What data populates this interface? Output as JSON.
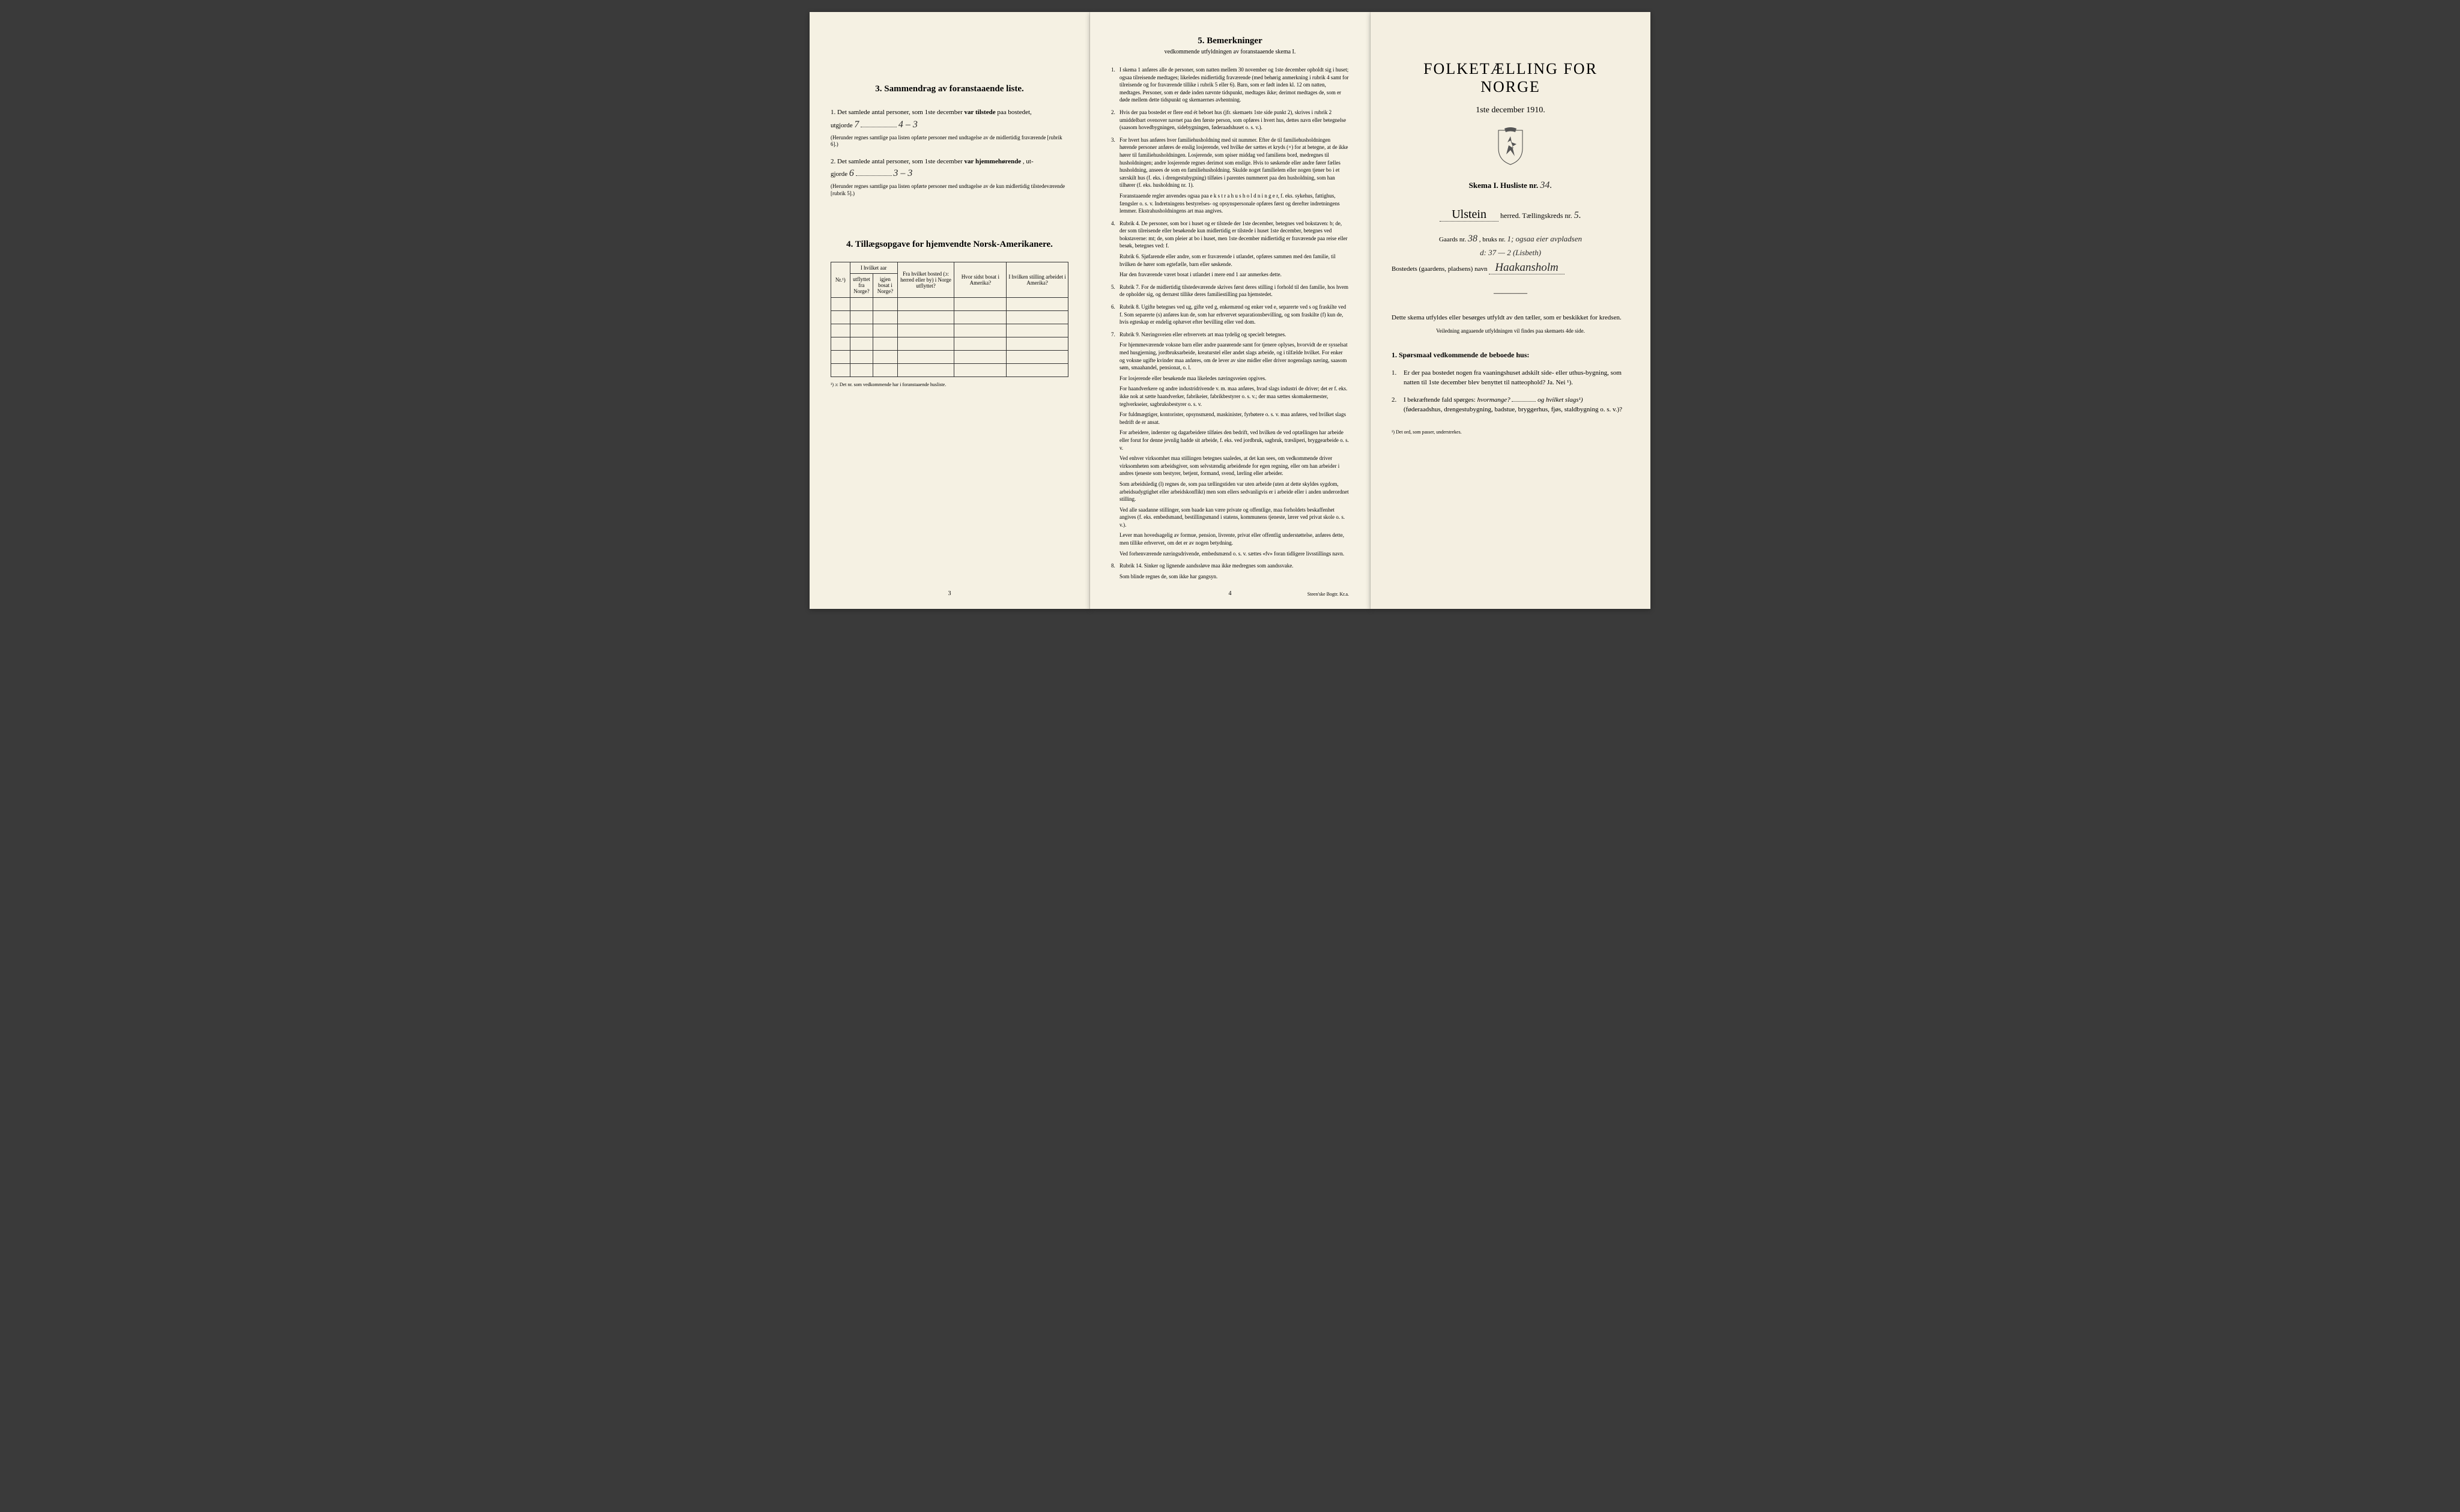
{
  "page1": {
    "section3_title": "3.   Sammendrag av foranstaaende liste.",
    "item1_prefix": "1.  Det samlede antal personer, som 1ste december",
    "item1_bold": "var tilstede",
    "item1_suffix": "paa bostedet,",
    "item1_utgjorde": "utgjorde",
    "item1_hw1": "7",
    "item1_hw2": "4 – 3",
    "item1_note": "(Herunder regnes samtlige paa listen opførte personer med undtagelse av de midlertidig fraværende [rubrik 6].)",
    "item2_prefix": "2.  Det samlede antal personer, som 1ste december",
    "item2_bold": "var hjemmehørende",
    "item2_suffix": ", ut-",
    "item2_gjorde": "gjorde",
    "item2_hw1": "6",
    "item2_hw2": "3 – 3",
    "item2_note": "(Herunder regnes samtlige paa listen opførte personer med undtagelse av de kun midlertidig tilstedeværende [rubrik 5].)",
    "section4_title": "4.   Tillægsopgave for hjemvendte Norsk-Amerikanere.",
    "table": {
      "col1": "Nr.¹)",
      "col2_top": "I hvilket aar",
      "col2a": "utflyttet fra Norge?",
      "col2b": "igjen bosat i Norge?",
      "col3": "Fra hvilket bosted (ɔ: herred eller by) i Norge utflyttet?",
      "col4": "Hvor sidst bosat i Amerika?",
      "col5": "I hvilken stilling arbeidet i Amerika?",
      "rows": 6
    },
    "footnote": "¹) ɔ: Det nr. som vedkommende har i foranstaaende husliste.",
    "page_num": "3"
  },
  "page2": {
    "title": "5.   Bemerkninger",
    "subtitle": "vedkommende utfyldningen av foranstaaende skema I.",
    "items": [
      {
        "num": "1.",
        "paras": [
          "I skema 1 anføres alle de personer, som natten mellem 30 november og 1ste december opholdt sig i huset; ogsaa tilreisende medtages; likeledes midlertidig fraværende (med behørig anmerkning i rubrik 4 samt for tilreisende og for fraværende tillike i rubrik 5 eller 6). Barn, som er født inden kl. 12 om natten, medtages. Personer, som er døde inden nævnte tidspunkt, medtages ikke; derimot medtages de, som er døde mellem dette tidspunkt og skemaernes avhentning."
        ]
      },
      {
        "num": "2.",
        "paras": [
          "Hvis der paa bostedet er flere end ét beboet hus (jfr. skemaets 1ste side punkt 2), skrives i rubrik 2 umiddelbart ovenover navnet paa den første person, som opføres i hvert hus, dettes navn eller betegnelse (saasom hovedbygningen, sidebygningen, føderaadshuset o. s. v.)."
        ]
      },
      {
        "num": "3.",
        "paras": [
          "For hvert hus anføres hver familiehusholdning med sit nummer. Efter de til familiehusholdningen hørende personer anføres de enslig losjerende, ved hvilke der sættes et kryds (×) for at betegne, at de ikke hører til familiehusholdningen. Losjerende, som spiser middag ved familiens bord, medregnes til husholdningen; andre losjerende regnes derimot som enslige. Hvis to søskende eller andre fører fælles husholdning, ansees de som en familiehusholdning. Skulde noget familielem eller nogen tjener bo i et særskilt hus (f. eks. i drengestubygning) tilføies i parentes nummeret paa den husholdning, som han tilhører (f. eks. husholdning nr. 1).",
          "Foranstaaende regler anvendes ogsaa paa e k s t r a h u s h o l d n i n g e r, f. eks. sykehus, fattighus, fængsler o. s. v. Indretningens bestyrelses- og opsynspersonale opføres først og derefter indretningens lemmer. Ekstrahusholdningens art maa angives."
        ]
      },
      {
        "num": "4.",
        "paras": [
          "Rubrik 4. De personer, som bor i huset og er tilstede der 1ste december, betegnes ved bokstaven: b; de, der som tilreisende eller besøkende kun midlertidig er tilstede i huset 1ste december, betegnes ved bokstaverne: mt; de, som pleier at bo i huset, men 1ste december midlertidig er fraværende paa reise eller besøk, betegnes ved: f.",
          "Rubrik 6. Sjøfarende eller andre, som er fraværende i utlandet, opføres sammen med den familie, til hvilken de hører som egtefælle, barn eller søskende.",
          "Har den fraværende været bosat i utlandet i mere end 1 aar anmerkes dette."
        ]
      },
      {
        "num": "5.",
        "paras": [
          "Rubrik 7. For de midlertidig tilstedeværende skrives først deres stilling i forhold til den familie, hos hvem de opholder sig, og dernæst tillike deres familiestilling paa hjemstedet."
        ]
      },
      {
        "num": "6.",
        "paras": [
          "Rubrik 8. Ugifte betegnes ved ug, gifte ved g, enkemænd og enker ved e, separerte ved s og fraskilte ved f. Som separerte (s) anføres kun de, som har erhvervet separationsbevilling, og som fraskilte (f) kun de, hvis egteskap er endelig ophævet efter bevilling eller ved dom."
        ]
      },
      {
        "num": "7.",
        "paras": [
          "Rubrik 9. Næringsveien eller erhvervets art maa tydelig og specielt betegnes.",
          "For hjemmeværende voksne barn eller andre paarørende samt for tjenere oplyses, hvorvidt de er sysselsat med husgjerning, jordbruksarbeide, kreaturstel eller andet slags arbeide, og i tilfælde hvilket. For enker og voksne ugifte kvinder maa anføres, om de lever av sine midler eller driver nogenslags næring, saasom søm, smaahandel, pensionat, o. l.",
          "For losjerende eller besøkende maa likeledes næringsveien opgives.",
          "For haandverkere og andre industridrivende v. m. maa anføres, hvad slags industri de driver; det er f. eks. ikke nok at sætte haandverker, fabrikeier, fabrikbestyrer o. s. v.; der maa sættes skomakermester, teglverkseier, sagbruksbestyrer o. s. v.",
          "For fuldmægtiger, kontorister, opsynsmænd, maskinister, fyrbøtere o. s. v. maa anføres, ved hvilket slags bedrift de er ansat.",
          "For arbeidere, inderster og dagarbeidere tilføies den bedrift, ved hvilken de ved optællingen har arbeide eller forut for denne jevnlig hadde sit arbeide, f. eks. ved jordbruk, sagbruk, træsliperi, bryggearbeide o. s. v.",
          "Ved enhver virksomhet maa stillingen betegnes saaledes, at det kan sees, om vedkommende driver virksomheten som arbeidsgiver, som selvstændig arbeidende for egen regning, eller om han arbeider i andres tjeneste som bestyrer, betjent, formand, svend, lærling eller arbeider.",
          "Som arbeidsledig (l) regnes de, som paa tællingstiden var uten arbeide (uten at dette skyldes sygdom, arbeidsudygtighet eller arbeidskonflikt) men som ellers sedvanligvis er i arbeide eller i anden underordnet stilling.",
          "Ved alle saadanne stillinger, som baade kan være private og offentlige, maa forholdets beskaffenhet angives (f. eks. embedsmand, bestillingsmand i statens, kommunens tjeneste, lærer ved privat skole o. s. v.).",
          "Lever man hovedsagelig av formue, pension, livrente, privat eller offentlig understøttelse, anføres dette, men tillike erhvervet, om det er av nogen betydning.",
          "Ved forhenværende næringsdrivende, embedsmænd o. s. v. sættes «fv» foran tidligere livsstillings navn."
        ]
      },
      {
        "num": "8.",
        "paras": [
          "Rubrik 14. Sinker og lignende aandssløve maa ikke medregnes som aandssvake.",
          "Som blinde regnes de, som ikke har gangsyn."
        ]
      }
    ],
    "page_num": "4",
    "printer": "Steen'ske Bogtr.  Kr.a."
  },
  "page3": {
    "main_title": "FOLKETÆLLING FOR NORGE",
    "date": "1ste december 1910.",
    "skema": "Skema I.   Husliste nr.",
    "skema_hw": "34.",
    "herred_hw": "Ulstein",
    "herred_suffix": "herred.   Tællingskreds nr.",
    "kreds_hw": "5.",
    "gaards_prefix": "Gaards nr.",
    "gaards_hw": "38",
    "bruks_prefix": ", bruks nr.",
    "bruks_hw": "1; ogsaa eier avpladsen",
    "gaards_line2": "d: 37    —    2  (Lisbeth)",
    "bosted_prefix": "Bostedets (gaardens, pladsens) navn",
    "bosted_hw": "Haakansholm",
    "fill_note": "Dette skema utfyldes eller besørges utfyldt av den tæller, som er beskikket for kredsen.",
    "veiledning": "Veiledning angaaende utfyldningen vil findes paa skemaets 4de side.",
    "sporsmaal_title": "1. Spørsmaal vedkommende de beboede hus:",
    "q1": "Er der paa bostedet nogen fra vaaningshuset adskilt side- eller uthus-bygning, som natten til 1ste december blev benyttet til natteophold?   Ja.   Nei ¹).",
    "q2_prefix": "I bekræftende fald spørges:",
    "q2_italic": "hvormange?",
    "q2_mid": "og hvilket slags¹)",
    "q2_suffix": "(føderaadshus, drengestubygning, badstue, bryggerhus, fjøs, staldbygning o. s. v.)?",
    "footnote": "¹) Det ord, som passer, understrekes."
  }
}
